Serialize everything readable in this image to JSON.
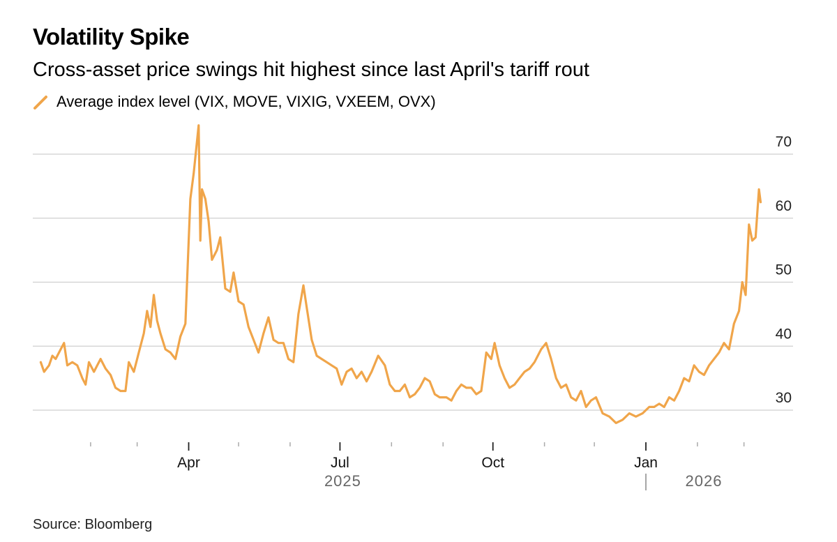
{
  "chart_data": {
    "type": "line",
    "title": "Volatility Spike",
    "subtitle": "Cross-asset price swings hit highest since last April's tariff rout",
    "source": "Source: Bloomberg",
    "series": [
      {
        "name": "Average index level (VIX, MOVE, VIXIG, VXEEM, OVX)",
        "color": "#f0a54a",
        "points": [
          [
            "2025-01-02",
            37.5
          ],
          [
            "2025-01-04",
            36.0
          ],
          [
            "2025-01-07",
            37.0
          ],
          [
            "2025-01-09",
            38.5
          ],
          [
            "2025-01-11",
            38.0
          ],
          [
            "2025-01-14",
            39.5
          ],
          [
            "2025-01-16",
            40.5
          ],
          [
            "2025-01-18",
            37.0
          ],
          [
            "2025-01-21",
            37.5
          ],
          [
            "2025-01-24",
            37.0
          ],
          [
            "2025-01-27",
            35.0
          ],
          [
            "2025-01-29",
            34.0
          ],
          [
            "2025-01-31",
            37.5
          ],
          [
            "2025-02-03",
            36.0
          ],
          [
            "2025-02-05",
            37.0
          ],
          [
            "2025-02-07",
            38.0
          ],
          [
            "2025-02-10",
            36.5
          ],
          [
            "2025-02-13",
            35.5
          ],
          [
            "2025-02-16",
            33.5
          ],
          [
            "2025-02-19",
            33.0
          ],
          [
            "2025-02-22",
            33.0
          ],
          [
            "2025-02-24",
            37.5
          ],
          [
            "2025-02-27",
            36.0
          ],
          [
            "2025-03-02",
            39.0
          ],
          [
            "2025-03-05",
            42.0
          ],
          [
            "2025-03-07",
            45.5
          ],
          [
            "2025-03-09",
            43.0
          ],
          [
            "2025-03-11",
            48.0
          ],
          [
            "2025-03-13",
            44.0
          ],
          [
            "2025-03-15",
            42.0
          ],
          [
            "2025-03-18",
            39.5
          ],
          [
            "2025-03-21",
            39.0
          ],
          [
            "2025-03-24",
            38.0
          ],
          [
            "2025-03-27",
            41.5
          ],
          [
            "2025-03-30",
            43.5
          ],
          [
            "2025-04-02",
            63.0
          ],
          [
            "2025-04-04",
            67.0
          ],
          [
            "2025-04-07",
            74.5
          ],
          [
            "2025-04-08",
            56.5
          ],
          [
            "2025-04-09",
            64.5
          ],
          [
            "2025-04-11",
            63.0
          ],
          [
            "2025-04-13",
            59.5
          ],
          [
            "2025-04-15",
            53.5
          ],
          [
            "2025-04-18",
            55.0
          ],
          [
            "2025-04-20",
            57.0
          ],
          [
            "2025-04-23",
            49.0
          ],
          [
            "2025-04-26",
            48.5
          ],
          [
            "2025-04-28",
            51.5
          ],
          [
            "2025-05-01",
            47.0
          ],
          [
            "2025-05-04",
            46.5
          ],
          [
            "2025-05-07",
            43.0
          ],
          [
            "2025-05-10",
            41.0
          ],
          [
            "2025-05-13",
            39.0
          ],
          [
            "2025-05-16",
            42.0
          ],
          [
            "2025-05-19",
            44.5
          ],
          [
            "2025-05-22",
            41.0
          ],
          [
            "2025-05-25",
            40.5
          ],
          [
            "2025-05-28",
            40.5
          ],
          [
            "2025-05-31",
            38.0
          ],
          [
            "2025-06-03",
            37.5
          ],
          [
            "2025-06-06",
            45.0
          ],
          [
            "2025-06-09",
            49.5
          ],
          [
            "2025-06-11",
            46.0
          ],
          [
            "2025-06-14",
            41.0
          ],
          [
            "2025-06-17",
            38.5
          ],
          [
            "2025-06-20",
            38.0
          ],
          [
            "2025-06-23",
            37.5
          ],
          [
            "2025-06-26",
            37.0
          ],
          [
            "2025-06-29",
            36.5
          ],
          [
            "2025-07-02",
            34.0
          ],
          [
            "2025-07-05",
            36.0
          ],
          [
            "2025-07-08",
            36.5
          ],
          [
            "2025-07-11",
            35.0
          ],
          [
            "2025-07-14",
            36.0
          ],
          [
            "2025-07-17",
            34.5
          ],
          [
            "2025-07-20",
            36.0
          ],
          [
            "2025-07-24",
            38.5
          ],
          [
            "2025-07-28",
            37.0
          ],
          [
            "2025-07-31",
            34.0
          ],
          [
            "2025-08-03",
            33.0
          ],
          [
            "2025-08-06",
            33.0
          ],
          [
            "2025-08-09",
            34.0
          ],
          [
            "2025-08-12",
            32.0
          ],
          [
            "2025-08-15",
            32.5
          ],
          [
            "2025-08-18",
            33.5
          ],
          [
            "2025-08-21",
            35.0
          ],
          [
            "2025-08-24",
            34.5
          ],
          [
            "2025-08-27",
            32.5
          ],
          [
            "2025-08-30",
            32.0
          ],
          [
            "2025-09-03",
            32.0
          ],
          [
            "2025-09-06",
            31.5
          ],
          [
            "2025-09-09",
            33.0
          ],
          [
            "2025-09-12",
            34.0
          ],
          [
            "2025-09-15",
            33.5
          ],
          [
            "2025-09-18",
            33.5
          ],
          [
            "2025-09-21",
            32.5
          ],
          [
            "2025-09-24",
            33.0
          ],
          [
            "2025-09-27",
            39.0
          ],
          [
            "2025-09-30",
            38.0
          ],
          [
            "2025-10-02",
            40.5
          ],
          [
            "2025-10-05",
            37.0
          ],
          [
            "2025-10-08",
            35.0
          ],
          [
            "2025-10-11",
            33.5
          ],
          [
            "2025-10-14",
            34.0
          ],
          [
            "2025-10-17",
            35.0
          ],
          [
            "2025-10-20",
            36.0
          ],
          [
            "2025-10-23",
            36.5
          ],
          [
            "2025-10-26",
            37.5
          ],
          [
            "2025-10-30",
            39.5
          ],
          [
            "2025-11-02",
            40.5
          ],
          [
            "2025-11-05",
            38.0
          ],
          [
            "2025-11-08",
            35.0
          ],
          [
            "2025-11-11",
            33.5
          ],
          [
            "2025-11-14",
            34.0
          ],
          [
            "2025-11-17",
            32.0
          ],
          [
            "2025-11-20",
            31.5
          ],
          [
            "2025-11-23",
            33.0
          ],
          [
            "2025-11-26",
            30.5
          ],
          [
            "2025-11-29",
            31.5
          ],
          [
            "2025-12-02",
            32.0
          ],
          [
            "2025-12-06",
            29.5
          ],
          [
            "2025-12-10",
            29.0
          ],
          [
            "2025-12-14",
            28.0
          ],
          [
            "2025-12-18",
            28.5
          ],
          [
            "2025-12-22",
            29.5
          ],
          [
            "2025-12-26",
            29.0
          ],
          [
            "2025-12-30",
            29.5
          ],
          [
            "2026-01-03",
            30.5
          ],
          [
            "2026-01-06",
            30.5
          ],
          [
            "2026-01-09",
            31.0
          ],
          [
            "2026-01-12",
            30.5
          ],
          [
            "2026-01-15",
            32.0
          ],
          [
            "2026-01-18",
            31.5
          ],
          [
            "2026-01-21",
            33.0
          ],
          [
            "2026-01-24",
            35.0
          ],
          [
            "2026-01-27",
            34.5
          ],
          [
            "2026-01-30",
            37.0
          ],
          [
            "2026-02-02",
            36.0
          ],
          [
            "2026-02-05",
            35.5
          ],
          [
            "2026-02-08",
            37.0
          ],
          [
            "2026-02-11",
            38.0
          ],
          [
            "2026-02-14",
            39.0
          ],
          [
            "2026-02-17",
            40.5
          ],
          [
            "2026-02-20",
            39.5
          ],
          [
            "2026-02-23",
            43.5
          ],
          [
            "2026-02-26",
            45.5
          ],
          [
            "2026-02-28",
            50.0
          ],
          [
            "2026-03-02",
            48.0
          ],
          [
            "2026-03-04",
            59.0
          ],
          [
            "2026-03-06",
            56.5
          ],
          [
            "2026-03-08",
            57.0
          ],
          [
            "2026-03-10",
            64.5
          ],
          [
            "2026-03-11",
            62.5
          ]
        ]
      }
    ],
    "y_axis": {
      "ticks": [
        30,
        40,
        50,
        60,
        70
      ],
      "range": [
        25,
        75
      ],
      "side": "right",
      "gridlines": true
    },
    "x_axis": {
      "range": [
        "2025-01-01",
        "2026-03-15"
      ],
      "month_labels": [
        {
          "label": "Apr",
          "date": "2025-04-01"
        },
        {
          "label": "Jul",
          "date": "2025-07-01"
        },
        {
          "label": "Oct",
          "date": "2025-10-01"
        },
        {
          "label": "Jan",
          "date": "2026-01-01"
        }
      ],
      "minor_ticks": [
        "2025-02-01",
        "2025-03-01",
        "2025-05-01",
        "2025-06-01",
        "2025-08-01",
        "2025-09-01",
        "2025-11-01",
        "2025-12-01",
        "2026-02-01",
        "2026-03-01"
      ],
      "year_labels": [
        "2025",
        "2026"
      ]
    },
    "grid": true,
    "legend_position": "top-left"
  }
}
